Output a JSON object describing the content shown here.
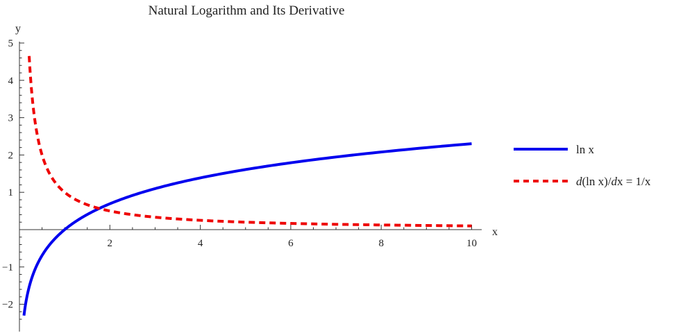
{
  "chart_data": {
    "type": "line",
    "title": "Natural Logarithm and Its Derivative",
    "xlabel": "x",
    "ylabel": "y",
    "xlim": [
      0,
      10
    ],
    "ylim": [
      -2.5,
      5
    ],
    "x_ticks": [
      2,
      4,
      6,
      8,
      10
    ],
    "y_ticks": [
      -2,
      -1,
      1,
      2,
      3,
      4,
      5
    ],
    "grid": false,
    "legend_position": "right",
    "series": [
      {
        "name": "ln x",
        "function": "ln x",
        "color": "#0000ee",
        "style": "solid",
        "x": [
          0.1,
          0.2,
          0.3,
          0.5,
          0.7,
          1,
          1.5,
          2,
          3,
          4,
          5,
          6,
          7,
          8,
          9,
          10
        ],
        "y": [
          -2.303,
          -1.609,
          -1.204,
          -0.693,
          -0.357,
          0,
          0.405,
          0.693,
          1.099,
          1.386,
          1.609,
          1.792,
          1.946,
          2.079,
          2.197,
          2.303
        ]
      },
      {
        "name": "d(ln x)/dx = 1/x",
        "function": "1/x",
        "color": "#ee0000",
        "style": "dashed",
        "x": [
          0.215,
          0.3,
          0.5,
          0.7,
          1,
          1.5,
          2,
          3,
          4,
          5,
          6,
          7,
          8,
          9,
          10
        ],
        "y": [
          4.651,
          3.333,
          2,
          1.429,
          1,
          0.667,
          0.5,
          0.333,
          0.25,
          0.2,
          0.167,
          0.143,
          0.125,
          0.111,
          0.1
        ]
      }
    ],
    "legend": {
      "entries": [
        {
          "label": "ln x"
        },
        {
          "label_parts": [
            "d",
            "(ln x)/",
            "d",
            "x = 1/x"
          ]
        }
      ]
    }
  }
}
